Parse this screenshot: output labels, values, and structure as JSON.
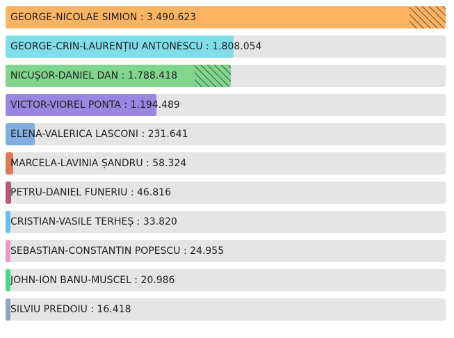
{
  "chart_data": {
    "type": "bar",
    "orientation": "horizontal",
    "categories": [
      "GEORGE-NICOLAE SIMION",
      "GEORGE-CRIN-LAURENȚIU ANTONESCU",
      "NICUȘOR-DANIEL DAN",
      "VICTOR-VIOREL PONTA",
      "ELENA-VALERICA LASCONI",
      "MARCELA-LAVINIA ȘANDRU",
      "PETRU-DANIEL FUNERIU",
      "CRISTIAN-VASILE TERHEȘ",
      "SEBASTIAN-CONSTANTIN POPESCU",
      "JOHN-ION BANU-MUSCEL",
      "SILVIU PREDOIU"
    ],
    "values": [
      3490623,
      1808054,
      1788418,
      1194489,
      231641,
      58324,
      46816,
      33820,
      24955,
      20986,
      16418
    ],
    "value_labels": [
      "3.490.623",
      "1.808.054",
      "1.788.418",
      "1.194.489",
      "231.641",
      "58.324",
      "46.816",
      "33.820",
      "24.955",
      "20.986",
      "16.418"
    ],
    "colors": [
      "#fdb462",
      "#80deea",
      "#81d58f",
      "#9a85e0",
      "#82aee0",
      "#dd7a5a",
      "#b4587a",
      "#64c0f5",
      "#e69ac4",
      "#48d88f",
      "#91a3bf"
    ],
    "hatched": [
      true,
      false,
      true,
      false,
      false,
      false,
      false,
      false,
      false,
      false,
      false
    ],
    "xlim": [
      0,
      3490623
    ],
    "grid": false,
    "legend": "none"
  }
}
